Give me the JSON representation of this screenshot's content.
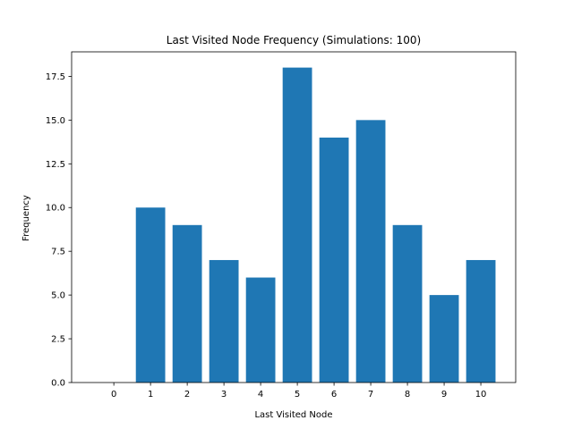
{
  "chart_data": {
    "type": "bar",
    "title": "Last Visited Node Frequency (Simulations: 100)",
    "xlabel": "Last Visited Node",
    "ylabel": "Frequency",
    "categories": [
      "0",
      "1",
      "2",
      "3",
      "4",
      "5",
      "6",
      "7",
      "8",
      "9",
      "10"
    ],
    "values": [
      0,
      10,
      9,
      7,
      6,
      18,
      14,
      15,
      9,
      5,
      7
    ],
    "ylim": [
      0,
      18.9
    ],
    "yticks": [
      "0.0",
      "2.5",
      "5.0",
      "7.5",
      "10.0",
      "12.5",
      "15.0",
      "17.5"
    ],
    "bar_color": "#1f77b4",
    "grid": false
  }
}
